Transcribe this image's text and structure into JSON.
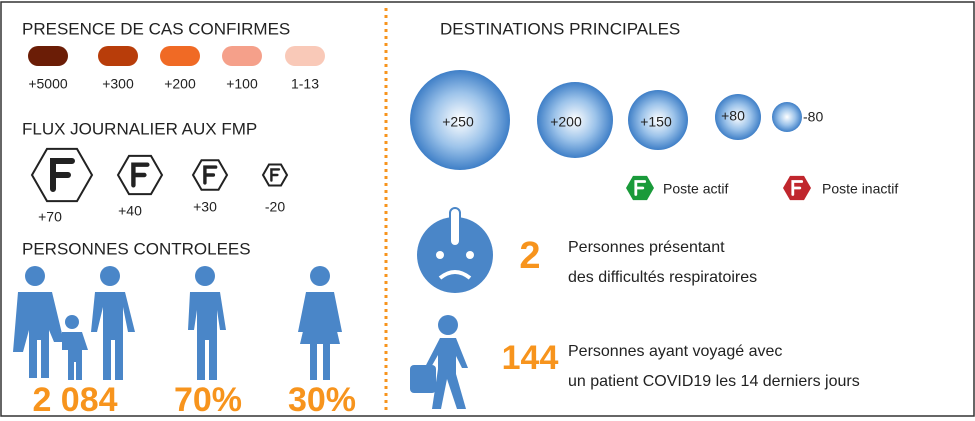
{
  "cases_legend": {
    "title": "PRESENCE DE CAS CONFIRMES",
    "items": [
      {
        "label": "+5000",
        "color": "#6b1d06"
      },
      {
        "label": "+300",
        "color": "#b83d0a"
      },
      {
        "label": "+200",
        "color": "#f06a25"
      },
      {
        "label": "+100",
        "color": "#f5a08a"
      },
      {
        "label": "1-13",
        "color": "#f9c9b8"
      }
    ]
  },
  "flux": {
    "title": "FLUX JOURNALIER AUX  FMP",
    "labels": [
      "+70",
      "+40",
      "+30",
      "-20"
    ]
  },
  "persons": {
    "title": "PERSONNES CONTROLEES",
    "figures": [
      "2 084",
      "70%",
      "30%"
    ]
  },
  "destinations": {
    "title": "DESTINATIONS PRINCIPALES",
    "bubbles": [
      "+250",
      "+200",
      "+150",
      "+80",
      "-80"
    ]
  },
  "posts": {
    "active": "Poste actif",
    "inactive": "Poste inactif"
  },
  "stats": [
    {
      "number": "2",
      "lines": [
        "Personnes présentant",
        "des difficultés respiratoires"
      ]
    },
    {
      "number": "144",
      "lines": [
        "Personnes ayant voyagé avec",
        "un patient COVID19 les 14 derniers jours"
      ]
    }
  ]
}
